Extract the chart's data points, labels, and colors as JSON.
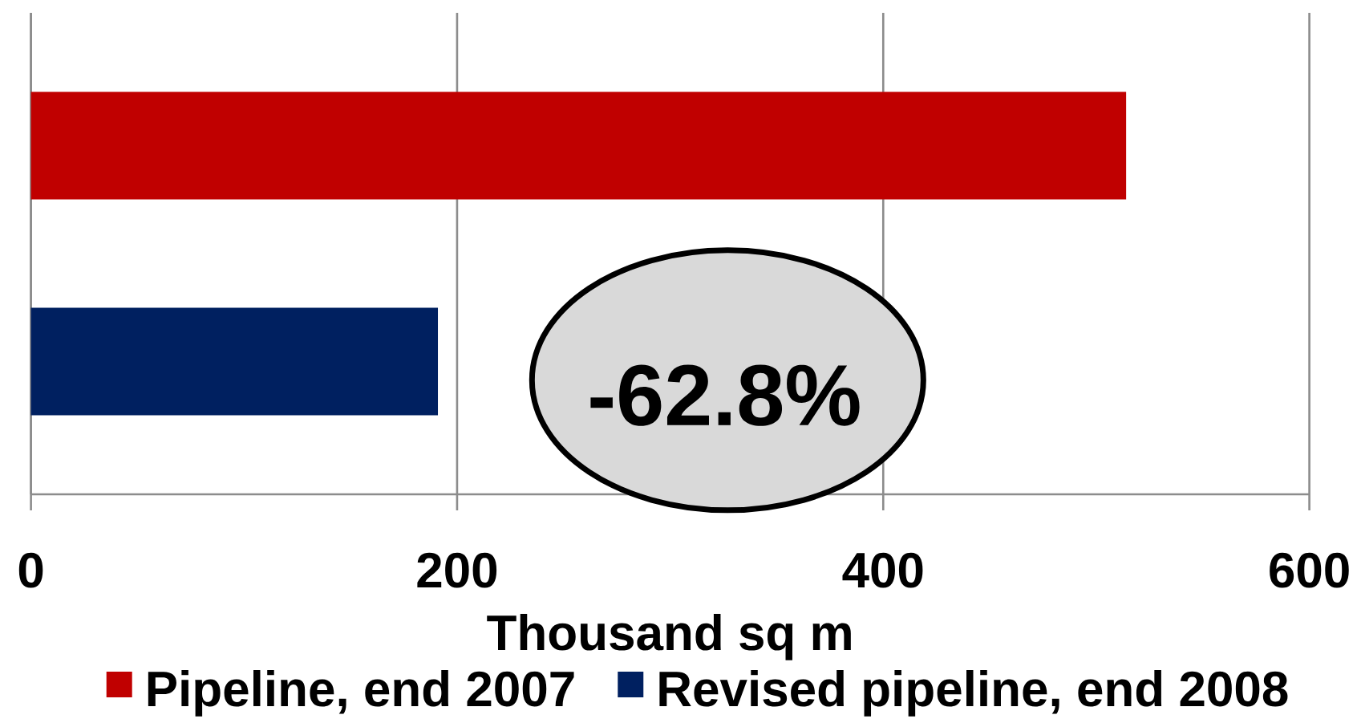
{
  "chart_data": {
    "type": "bar",
    "orientation": "horizontal",
    "categories": [
      null
    ],
    "series": [
      {
        "name": "Pipeline, end 2007",
        "color": "#c00000",
        "values": [
          514
        ]
      },
      {
        "name": "Revised pipeline, end 2008",
        "color": "#002060",
        "values": [
          191
        ]
      }
    ],
    "xlabel": "Thousand sq m",
    "xlim": [
      0,
      600
    ],
    "xticks": [
      0,
      200,
      400,
      600
    ],
    "grid": "x",
    "legend": "bottom",
    "annotations": [
      "-62.8%"
    ]
  }
}
